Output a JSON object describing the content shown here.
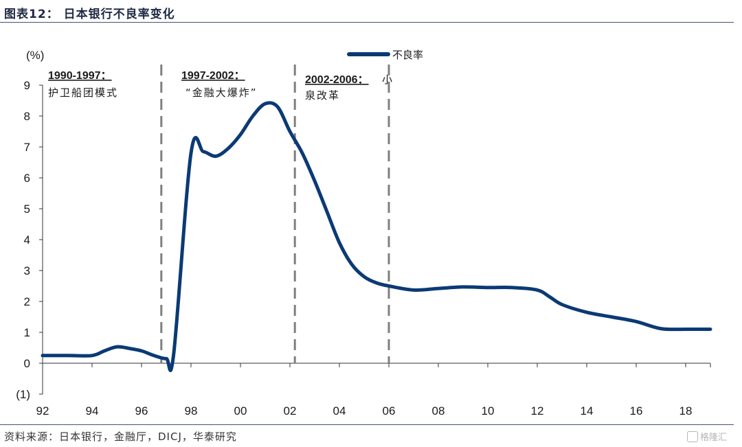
{
  "header": {
    "title": "图表12： 日本银行不良率变化"
  },
  "footer": {
    "source": "资料来源：日本银行，金融厅，DICJ，华泰研究",
    "logo_text": "格隆汇",
    "logo_icon": "gelonghui-logo-icon"
  },
  "chart_data": {
    "type": "line",
    "ylabel": "(%)",
    "ylim": [
      -1,
      9
    ],
    "yticks": [
      "(1)",
      "0",
      "1",
      "2",
      "3",
      "4",
      "5",
      "6",
      "7",
      "8",
      "9"
    ],
    "xlim": [
      1992,
      2019
    ],
    "xticks": [
      "92",
      "94",
      "96",
      "98",
      "00",
      "02",
      "04",
      "06",
      "08",
      "10",
      "12",
      "14",
      "16",
      "18"
    ],
    "grid": false,
    "legend": {
      "placement": "top-right",
      "entries": [
        "不良率"
      ]
    },
    "series": [
      {
        "name": "不良率",
        "color": "#0b3a75",
        "x": [
          1992,
          1993,
          1994,
          1994.5,
          1995,
          1995.5,
          1996,
          1996.5,
          1997,
          1997.3,
          1998,
          1998.5,
          1999,
          1999.5,
          2000,
          2000.5,
          2001,
          2001.5,
          2002,
          2002.5,
          2003,
          2003.5,
          2004,
          2004.5,
          2005,
          2005.5,
          2006,
          2007,
          2008,
          2009,
          2010,
          2011,
          2012,
          2012.5,
          2013,
          2014,
          2015,
          2016,
          2017,
          2018,
          2019
        ],
        "y": [
          0.25,
          0.25,
          0.25,
          0.4,
          0.53,
          0.48,
          0.4,
          0.25,
          0.15,
          0.3,
          6.8,
          6.85,
          6.7,
          6.95,
          7.4,
          8.0,
          8.4,
          8.3,
          7.5,
          6.8,
          5.9,
          4.9,
          3.9,
          3.2,
          2.8,
          2.6,
          2.5,
          2.37,
          2.42,
          2.47,
          2.45,
          2.45,
          2.37,
          2.15,
          1.9,
          1.65,
          1.5,
          1.35,
          1.12,
          1.1,
          1.1
        ]
      }
    ],
    "periods": [
      {
        "range": "1990-1997：",
        "desc": "护卫船团模式",
        "end_x": 1996.8
      },
      {
        "range": "1997-2002：",
        "desc": "“金融大爆炸”",
        "end_x": 2002.2
      },
      {
        "range": "2002-2006：",
        "desc_line1": "小",
        "desc_line2": "泉改革",
        "end_x": 2006
      }
    ]
  }
}
